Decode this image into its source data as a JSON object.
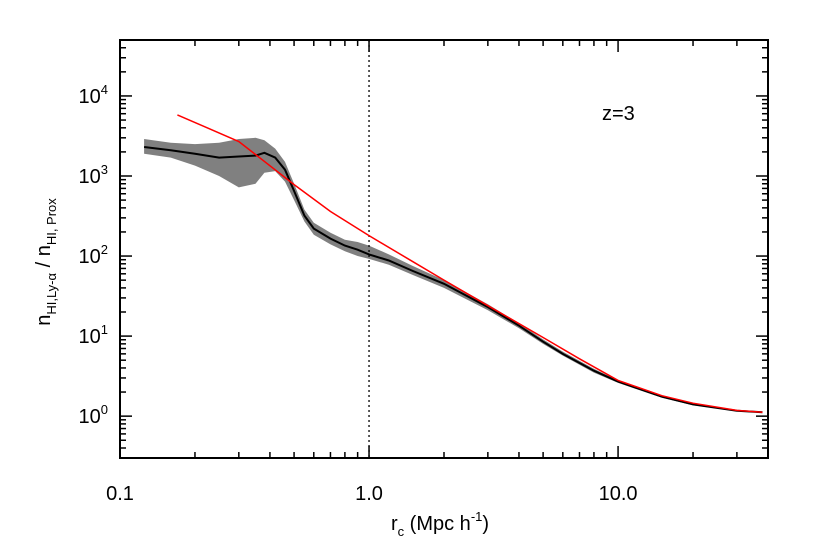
{
  "chart_data": {
    "type": "line",
    "title": "",
    "annotation": "z=3",
    "xscale": "log",
    "yscale": "log",
    "xlim": [
      0.1,
      40.0
    ],
    "ylim": [
      0.3,
      50000
    ],
    "x_ticks": [
      {
        "value": 0.1,
        "label": "0.1"
      },
      {
        "value": 1.0,
        "label": "1.0"
      },
      {
        "value": 10.0,
        "label": "10.0"
      }
    ],
    "y_ticks": [
      {
        "value": 1,
        "base": "10",
        "exp": "0"
      },
      {
        "value": 10,
        "base": "10",
        "exp": "1"
      },
      {
        "value": 100,
        "base": "10",
        "exp": "2"
      },
      {
        "value": 1000,
        "base": "10",
        "exp": "3"
      },
      {
        "value": 10000,
        "base": "10",
        "exp": "4"
      }
    ],
    "xlabel": {
      "main": "r",
      "sub": "c",
      "rest": " (Mpc  h",
      "sup": "-1",
      "close": ")"
    },
    "ylabel": {
      "n1": "n",
      "sub1": "HI,Ly-α",
      "slash": " / ",
      "n2": "n",
      "sub2": "HI, Prox"
    },
    "vline": {
      "x": 1.0,
      "style": "dotted",
      "color": "#000000"
    },
    "series": [
      {
        "kind": "median",
        "color": "#000000",
        "x": [
          0.125,
          0.16,
          0.2,
          0.25,
          0.3,
          0.35,
          0.38,
          0.42,
          0.46,
          0.5,
          0.55,
          0.6,
          0.7,
          0.8,
          0.9,
          1.0,
          1.2,
          1.5,
          2.0,
          3.0,
          4.0,
          5.0,
          6.0,
          8.0,
          10.0,
          15.0,
          20.0,
          30.0,
          38.0
        ],
        "y": [
          2300,
          2100,
          1900,
          1700,
          1750,
          1800,
          1950,
          1700,
          1200,
          650,
          320,
          220,
          165,
          135,
          120,
          105,
          88,
          65,
          45,
          23,
          13.5,
          8.5,
          6.0,
          3.7,
          2.7,
          1.75,
          1.4,
          1.17,
          1.12
        ]
      },
      {
        "kind": "fit",
        "color": "#ff0000",
        "x": [
          0.17,
          0.3,
          0.5,
          0.7,
          1.0,
          1.5,
          2.0,
          3.0,
          5.0,
          7.0,
          10.0,
          15.0,
          20.0,
          30.0,
          38.0
        ],
        "y": [
          5800,
          2700,
          780,
          360,
          180,
          85,
          50,
          24,
          9.6,
          5.2,
          2.8,
          1.8,
          1.45,
          1.18,
          1.12
        ]
      }
    ],
    "band": {
      "color": "#808080",
      "x": [
        0.125,
        0.16,
        0.2,
        0.25,
        0.3,
        0.35,
        0.38,
        0.42,
        0.46,
        0.5,
        0.55,
        0.6,
        0.7,
        0.8,
        0.9,
        1.0,
        1.2,
        1.5,
        2.0,
        3.0,
        4.0,
        5.0,
        6.0,
        8.0,
        10.0,
        15.0,
        20.0,
        30.0,
        38.0
      ],
      "upper": [
        2900,
        2600,
        2500,
        2600,
        2900,
        3000,
        2800,
        2200,
        1500,
        800,
        380,
        260,
        195,
        160,
        150,
        135,
        105,
        75,
        50,
        25,
        14.5,
        9.1,
        6.4,
        3.9,
        2.8,
        1.8,
        1.43,
        1.19,
        1.14
      ],
      "lower": [
        1900,
        1700,
        1350,
        1000,
        720,
        800,
        1100,
        1150,
        850,
        500,
        270,
        185,
        140,
        115,
        100,
        92,
        78,
        58,
        40,
        21,
        12.5,
        8.0,
        5.7,
        3.5,
        2.6,
        1.7,
        1.37,
        1.15,
        1.1
      ]
    }
  }
}
